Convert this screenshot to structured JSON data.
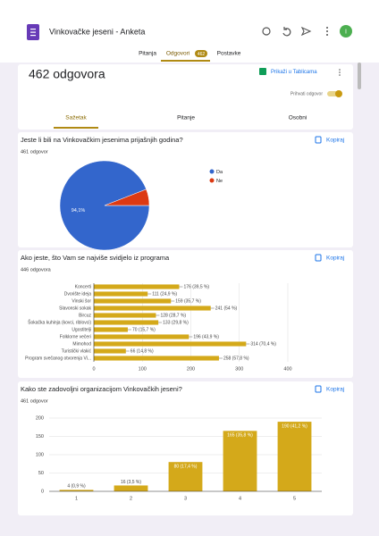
{
  "header": {
    "title": "Vinkovačke jeseni - Anketa",
    "avatar": "I"
  },
  "tabs": [
    "Pitanja",
    "Odgovori",
    "Postavke"
  ],
  "tab_badge": "462",
  "summary": {
    "title": "462 odgovora",
    "sheets_button": "Prikaži u Tablicama",
    "accept_label": "Prihvati odgovor",
    "subtabs": [
      "Sažetak",
      "Pitanje",
      "Osobni"
    ]
  },
  "questions": [
    {
      "title": "Jeste li bili na Vinkovačkim jesenima prijašnjih godina?",
      "response_count": "461 odgovor",
      "copy": "Kopiraj",
      "chart": {
        "type": "pie",
        "categories": [
          "Da",
          "Ne"
        ],
        "values": [
          94.1,
          5.9
        ],
        "value_labels": [
          "94,1%",
          null
        ],
        "colors": [
          "#3366cc",
          "#dc3912"
        ]
      }
    },
    {
      "title": "Ako jeste, što Vam se najviše svidjelo iz programa",
      "response_count": "446 odgovora",
      "copy": "Kopiraj",
      "chart": {
        "type": "hbar",
        "categories": [
          "Koncerti",
          "Dvorište ideja",
          "Vinski šor",
          "Slavonski sokak",
          "Bircuz",
          "Šokačka kuhinja (kovci, riblovci)",
          "Ugostitelji",
          "Folklorne večeri",
          "Mimohod",
          "Turistički vlakić",
          "Program svečanog otvorenja Vi..."
        ],
        "values": [
          176,
          111,
          159,
          241,
          128,
          133,
          70,
          196,
          314,
          66,
          258
        ],
        "value_labels": [
          "176 (39,5 %)",
          "111 (24,9 %)",
          "159 (35,7 %)",
          "241 (54 %)",
          "128 (28,7 %)",
          "133 (29,8 %)",
          "70 (15,7 %)",
          "196 (43,9 %)",
          "314 (70,4 %)",
          "66 (14,8 %)",
          "258 (57,8 %)"
        ],
        "color": "#d4a91a",
        "xlim": [
          0,
          400
        ],
        "xticks": [
          0,
          100,
          200,
          300,
          400
        ],
        "grid": true
      }
    },
    {
      "title": "Kako ste zadovoljni organizacijom Vinkovačkih jeseni?",
      "response_count": "461 odgovor",
      "copy": "Kopiraj",
      "chart": {
        "type": "bar",
        "categories": [
          "1",
          "2",
          "3",
          "4",
          "5"
        ],
        "values": [
          4,
          16,
          80,
          165,
          190
        ],
        "value_labels": [
          "4 (0,9 %)",
          "16 (3,5 %)",
          "80 (17,4 %)",
          "165 (35,8 %)",
          "190 (41,2 %)"
        ],
        "color": "#d4a91a",
        "ylim": [
          0,
          200
        ],
        "yticks": [
          0,
          50,
          100,
          150,
          200
        ],
        "grid": true
      }
    }
  ]
}
